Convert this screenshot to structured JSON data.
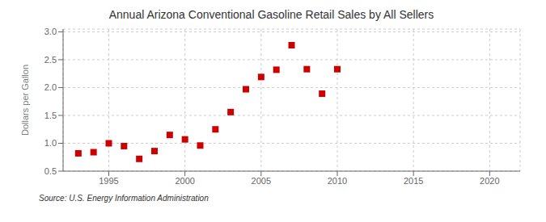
{
  "chart_data": {
    "type": "scatter",
    "title": "Annual Arizona Conventional Gasoline Retail Sales by All Sellers",
    "ylabel": "Dollars per Gallon",
    "annotations": [
      "Source: U.S. Energy Information Administration"
    ],
    "x": [
      1993,
      1994,
      1995,
      1996,
      1997,
      1998,
      1999,
      2000,
      2001,
      2002,
      2003,
      2004,
      2005,
      2006,
      2007,
      2008,
      2009,
      2010
    ],
    "values": [
      0.82,
      0.84,
      1.0,
      0.95,
      0.72,
      0.86,
      1.15,
      1.07,
      0.96,
      1.25,
      1.56,
      1.97,
      2.19,
      2.32,
      2.76,
      2.33,
      1.89,
      2.33
    ],
    "xlim": [
      1992,
      2022
    ],
    "ylim": [
      0.5,
      3.05
    ],
    "xticks": [
      1995,
      2000,
      2005,
      2010,
      2015,
      2020
    ],
    "yticks": [
      0.5,
      {
        "value": 1.0,
        "label": "1.0"
      },
      1.5,
      {
        "value": 2.0,
        "label": "2.0"
      },
      2.5,
      {
        "value": 3.0,
        "label": "3.0"
      }
    ],
    "color": "#cc0000",
    "marker": "square",
    "grid": true
  }
}
